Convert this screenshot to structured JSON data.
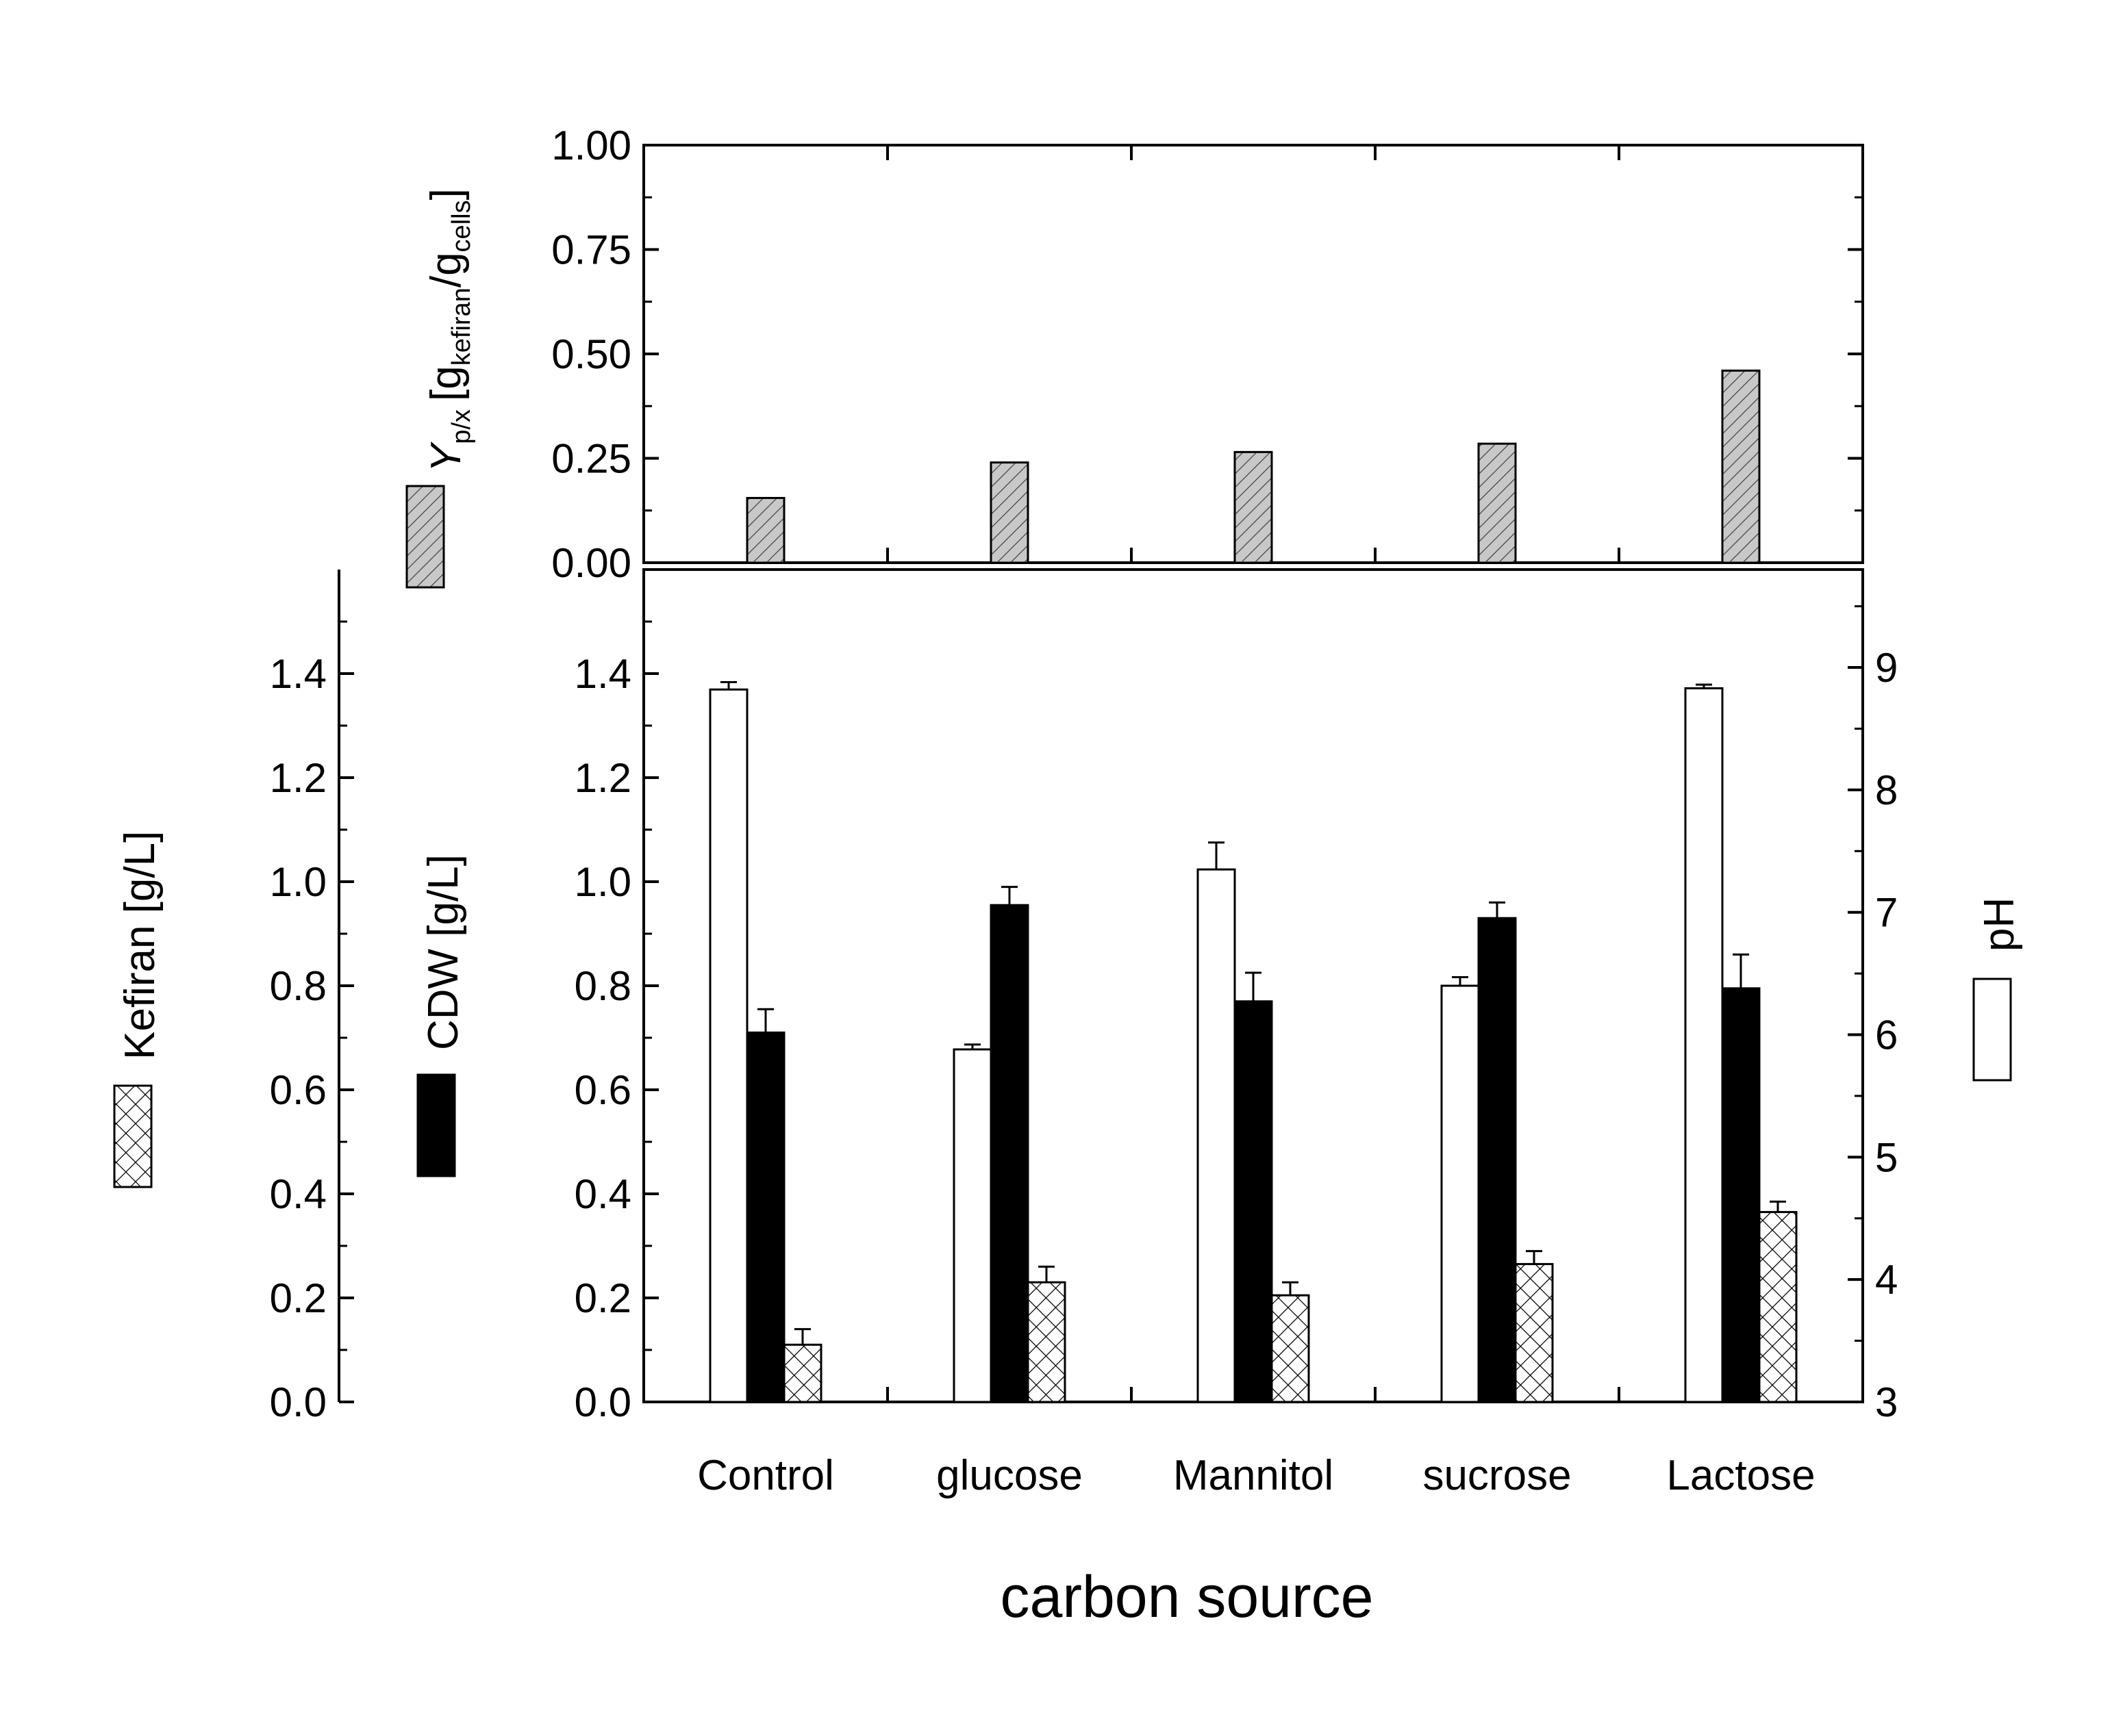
{
  "chart_data": {
    "type": "bar",
    "xlabel": "carbon source",
    "categories": [
      "Control",
      "glucose",
      "Mannitol",
      "sucrose",
      "Lactose"
    ],
    "colors": {
      "pH": "#ffffff",
      "CDW": "#000000",
      "Kefiran": "#ffffff",
      "Ypx": "#c8c8c8",
      "stroke": "#000000"
    },
    "top_panel": {
      "ylabel": "Y",
      "ylabel_sub": "p/x",
      "ylabel_unit": "[g",
      "ylabel_unit_sub1": "kefiran",
      "ylabel_unit_mid": "/g",
      "ylabel_unit_sub2": "cells",
      "ylabel_unit_end": "]",
      "ylim": [
        0,
        1.0
      ],
      "yticks": [
        "0.00",
        "0.25",
        "0.50",
        "0.75",
        "1.00"
      ],
      "series": [
        {
          "name": "Ypx",
          "pattern": "diagonal-hatch-gray",
          "values": [
            0.155,
            0.24,
            0.265,
            0.285,
            0.46
          ]
        }
      ]
    },
    "bottom_panel": {
      "left_ylim": [
        0,
        1.6
      ],
      "left_yticks": [
        "0.0",
        "0.2",
        "0.4",
        "0.6",
        "0.8",
        "1.0",
        "1.2",
        "1.4"
      ],
      "right_ylabel": "pH",
      "right_ylim": [
        3,
        9.8
      ],
      "right_yticks": [
        "3",
        "4",
        "5",
        "6",
        "7",
        "8",
        "9"
      ],
      "series": [
        {
          "name": "pH",
          "axis": "right",
          "pattern": "white",
          "values": [
            8.82,
            5.88,
            7.35,
            6.4,
            8.83
          ],
          "errors": [
            0.06,
            0.04,
            0.22,
            0.07,
            0.03
          ]
        },
        {
          "name": "CDW",
          "axis": "left",
          "pattern": "black",
          "values": [
            0.71,
            0.955,
            0.77,
            0.93,
            0.795
          ],
          "errors": [
            0.045,
            0.035,
            0.055,
            0.03,
            0.065
          ]
        },
        {
          "name": "Kefiran",
          "axis": "left",
          "pattern": "crosshatch",
          "values": [
            0.11,
            0.23,
            0.205,
            0.265,
            0.365
          ],
          "errors": [
            0.03,
            0.03,
            0.025,
            0.025,
            0.02
          ]
        }
      ]
    },
    "legend": [
      {
        "series": "Kefiran",
        "label": "Kefiran [g/L]"
      },
      {
        "series": "CDW",
        "label": "CDW [g/L]"
      },
      {
        "series": "Ypx",
        "label": "Ypx"
      },
      {
        "series": "pH",
        "label": "pH"
      }
    ]
  }
}
